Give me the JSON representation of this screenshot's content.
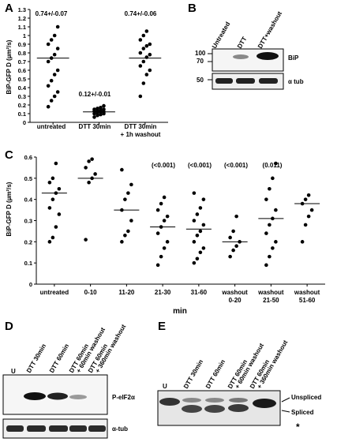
{
  "panels": {
    "A": "A",
    "B": "B",
    "C": "C",
    "D": "D",
    "E": "E"
  },
  "panel_a": {
    "ylabel": "BiP-GFP D (µm²/s)",
    "yticks": [
      "0",
      "0.1",
      "0.2",
      "0.3",
      "0.4",
      "0.5",
      "0.6",
      "0.7",
      "0.8",
      "0.9",
      "1",
      "1.1",
      "1.2",
      "1.3"
    ],
    "categories": [
      "untreated",
      "DTT 30min",
      "DTT 30min",
      "+ 1h washout"
    ],
    "annotations": [
      "0.74+/-0.07",
      "0.12+/-0.01",
      "0.74+/-0.06"
    ]
  },
  "panel_b": {
    "lanes": [
      "Untreated",
      "DTT",
      "DTT+washout"
    ],
    "mw": [
      "100",
      "70",
      "50"
    ],
    "bands": [
      "BiP",
      "α tub"
    ]
  },
  "panel_c": {
    "ylabel": "BiP-GFP D (µm²/s)",
    "xlabel": "min",
    "yticks": [
      "0",
      "0.1",
      "0.2",
      "0.3",
      "0.4",
      "0.5",
      "0.6"
    ],
    "categories": [
      "untreated",
      "0-10",
      "11-20",
      "21-30",
      "31-60",
      "washout",
      "0-20",
      "washout",
      "21-50",
      "washout",
      "51-60"
    ],
    "pvalues": [
      "(<0.001)",
      "(<0.001)",
      "(<0.001)",
      "(0.011)"
    ]
  },
  "panel_d": {
    "lanes": [
      "U",
      "DTT 30min",
      "DTT 60min",
      "DTT 60min",
      "+ 60min washout",
      "DTT 60min",
      "+ 360min washout"
    ],
    "bands": [
      "P-eIF2α",
      "α-tub"
    ]
  },
  "panel_e": {
    "lanes": [
      "U",
      "DTT 30min",
      "DTT 60min",
      "DTT 60min",
      "+ 60min washout",
      "DTT 60min",
      "+ 360min washout"
    ],
    "bands": [
      "Unspliced",
      "Spliced",
      "*"
    ]
  },
  "chart_data": [
    {
      "type": "scatter",
      "ylim": [
        0,
        1.3
      ],
      "categories": [
        "untreated",
        "DTT 30min",
        "DTT 30min + 1h washout"
      ],
      "medians": [
        0.74,
        0.12,
        0.74
      ],
      "points": [
        [
          0.18,
          0.25,
          0.3,
          0.35,
          0.42,
          0.48,
          0.55,
          0.6,
          0.7,
          0.74,
          0.78,
          0.85,
          0.9,
          0.95,
          1.0,
          1.1
        ],
        [
          0.06,
          0.08,
          0.09,
          0.1,
          0.1,
          0.11,
          0.12,
          0.12,
          0.13,
          0.13,
          0.14,
          0.15,
          0.15,
          0.16,
          0.17,
          0.19
        ],
        [
          0.3,
          0.45,
          0.55,
          0.6,
          0.65,
          0.7,
          0.75,
          0.78,
          0.8,
          0.85,
          0.88,
          0.9,
          0.95,
          1.0,
          1.05
        ]
      ]
    },
    {
      "type": "scatter",
      "ylim": [
        0,
        0.6
      ],
      "categories": [
        "untreated",
        "0-10",
        "11-20",
        "21-30",
        "31-60",
        "washout 0-20",
        "washout 21-50",
        "washout 51-60"
      ],
      "medians": [
        0.43,
        0.5,
        0.35,
        0.27,
        0.26,
        0.2,
        0.31,
        0.38
      ],
      "points": [
        [
          0.2,
          0.22,
          0.27,
          0.33,
          0.36,
          0.4,
          0.43,
          0.45,
          0.48,
          0.5,
          0.57
        ],
        [
          0.21,
          0.48,
          0.5,
          0.52,
          0.55,
          0.58,
          0.59
        ],
        [
          0.2,
          0.23,
          0.25,
          0.3,
          0.35,
          0.4,
          0.43,
          0.47,
          0.54
        ],
        [
          0.09,
          0.13,
          0.17,
          0.2,
          0.24,
          0.27,
          0.3,
          0.32,
          0.35,
          0.38,
          0.41
        ],
        [
          0.1,
          0.12,
          0.15,
          0.17,
          0.2,
          0.23,
          0.25,
          0.28,
          0.3,
          0.33,
          0.36,
          0.4,
          0.43
        ],
        [
          0.13,
          0.16,
          0.18,
          0.2,
          0.22,
          0.25,
          0.32
        ],
        [
          0.09,
          0.13,
          0.17,
          0.2,
          0.24,
          0.28,
          0.31,
          0.35,
          0.4,
          0.45,
          0.5,
          0.57
        ],
        [
          0.2,
          0.28,
          0.32,
          0.35,
          0.38,
          0.4,
          0.42
        ]
      ]
    }
  ]
}
